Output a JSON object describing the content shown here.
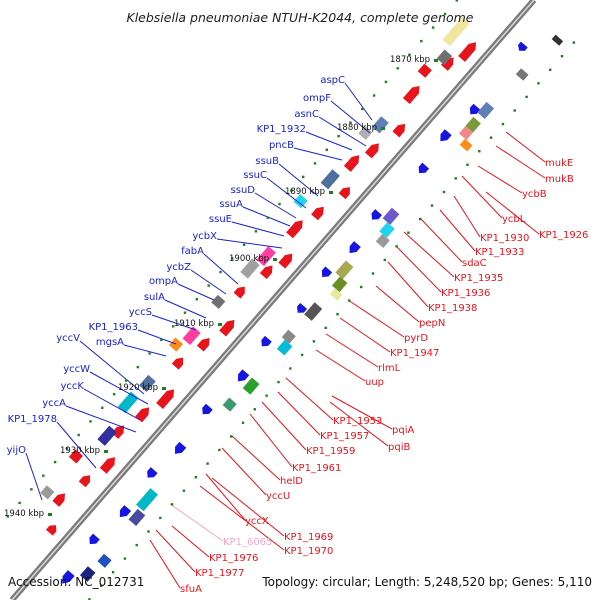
{
  "title": "Klebsiella pneumoniae NTUH-K2044, complete genome",
  "accession": "Accession: NC_012731",
  "topology": "Topology: circular; Length: 5,248,520 bp; Genes: 5,110",
  "colors": {
    "forward_label": "#1a22d0",
    "reverse_label": "#e8141c",
    "pseudo_label": "#f4a6c8",
    "backbone": "#8a8a8a",
    "tick": "#1f7f1f"
  },
  "position_ticks": [
    "1870 kbp",
    "1880 kbp",
    "1890 kbp",
    "1900 kbp",
    "1910 kbp",
    "1920 kbp",
    "1930 kbp",
    "1940 kbp"
  ],
  "forward_genes": [
    "aspC",
    "ompF",
    "asnC",
    "KP1_1932",
    "pncB",
    "ssuB",
    "ssuC",
    "ssuD",
    "ssuA",
    "ssuE",
    "ycbX",
    "fabA",
    "ycbZ",
    "ompA",
    "sulA",
    "yccS",
    "KP1_1963",
    "mgsA",
    "yccV",
    "yccW",
    "yccK",
    "yccA",
    "KP1_1978",
    "yijO"
  ],
  "reverse_genes": [
    "mukE",
    "mukB",
    "ycbB",
    "ycbL",
    "KP1_1926",
    "KP1_1930",
    "KP1_1933",
    "sdaC",
    "KP1_1935",
    "KP1_1936",
    "KP1_1938",
    "pepN",
    "pyrD",
    "KP1_1947",
    "rlmL",
    "uup",
    "KP1_1953",
    "pqiA",
    "KP1_1957",
    "pqiB",
    "KP1_1959",
    "KP1_1961",
    "helD",
    "yccU",
    "yccX",
    "KP1_6065",
    "KP1_1969",
    "KP1_1970",
    "KP1_1976",
    "KP1_1977",
    "sfuA"
  ]
}
